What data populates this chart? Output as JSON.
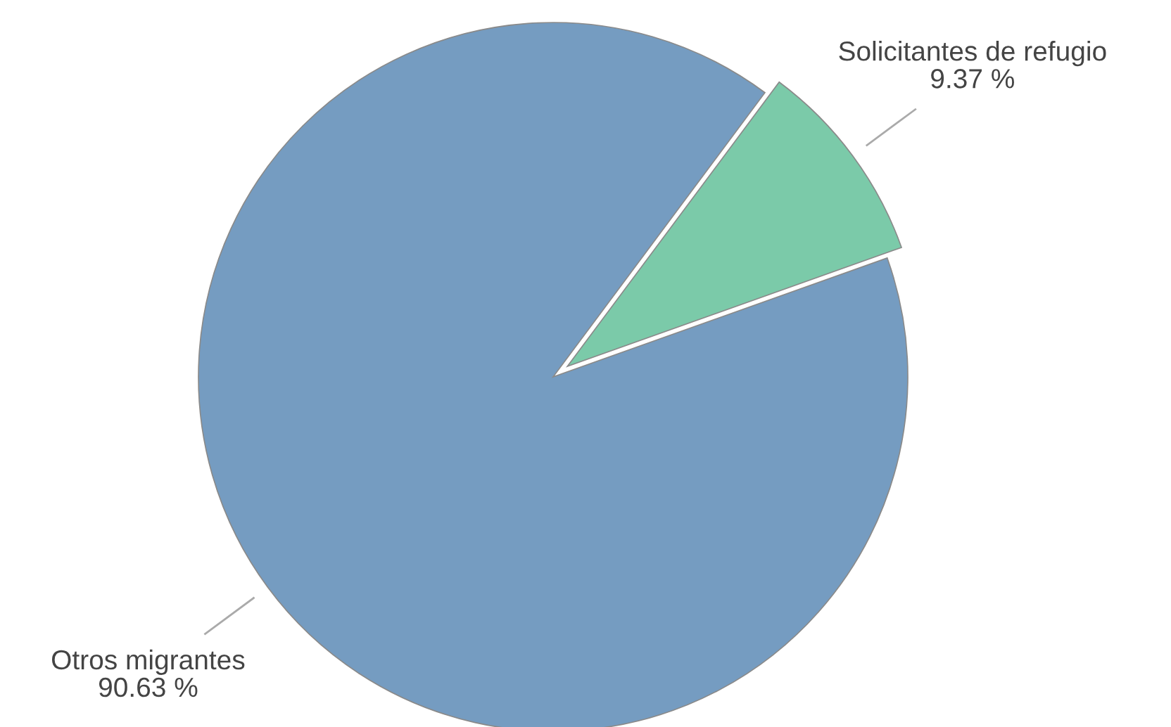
{
  "chart_data": {
    "type": "pie",
    "categories": [
      "Solicitantes de refugio",
      "Otros migrantes"
    ],
    "values": [
      9.37,
      90.63
    ],
    "value_labels": [
      "9.37 %",
      "90.63 %"
    ],
    "colors": [
      "#7bcaa9",
      "#759cc1"
    ],
    "legend": false
  }
}
